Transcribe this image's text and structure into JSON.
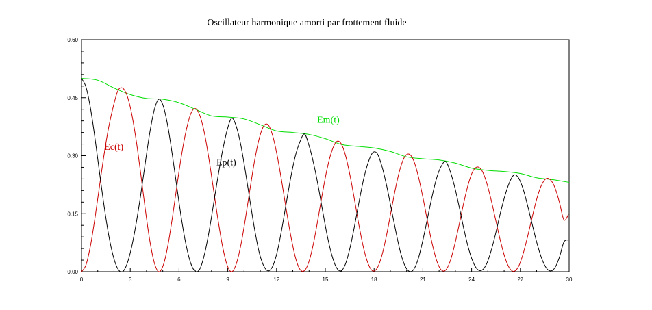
{
  "chart_data": {
    "type": "line",
    "title": "Oscillateur harmonique amorti par frottement fluide",
    "xlabel": "",
    "ylabel": "",
    "xlim": [
      0,
      30
    ],
    "ylim": [
      0,
      0.6
    ],
    "grid": false,
    "x_ticks": [
      "0",
      "3",
      "6",
      "9",
      "12",
      "15",
      "18",
      "21",
      "24",
      "27",
      "30"
    ],
    "y_ticks": [
      "0.00",
      "0.15",
      "0.30",
      "0.45",
      "0.60"
    ],
    "colors": {
      "Em(t)": "#00dd00",
      "Ec(t)": "#cc0000",
      "Ep(t)": "#000000"
    },
    "series": [
      {
        "name": "Em(t)",
        "x": [
          0,
          1,
          2,
          3,
          4,
          5,
          6,
          7,
          8,
          9,
          10,
          11,
          12,
          13,
          14,
          15,
          16,
          17,
          18,
          19,
          20,
          21,
          22,
          23,
          24,
          25,
          26,
          27,
          28,
          29,
          30
        ],
        "values": [
          0.5,
          0.495,
          0.475,
          0.458,
          0.448,
          0.446,
          0.437,
          0.42,
          0.403,
          0.4,
          0.395,
          0.38,
          0.364,
          0.36,
          0.355,
          0.344,
          0.329,
          0.324,
          0.32,
          0.311,
          0.297,
          0.292,
          0.289,
          0.281,
          0.268,
          0.262,
          0.259,
          0.254,
          0.243,
          0.238,
          0.231
        ]
      },
      {
        "name": "Ec(t)",
        "x": [
          0,
          0.28,
          0.56,
          0.84,
          1.12,
          1.4,
          1.68,
          1.96,
          2.24,
          2.52,
          2.8,
          3.08,
          3.36,
          3.64,
          3.92,
          4.2,
          4.48,
          4.76,
          5.04,
          5.32,
          5.6,
          5.88,
          6.16,
          6.44,
          6.72,
          7.0,
          7.28,
          7.56,
          7.84,
          8.12,
          8.4,
          8.68,
          8.96,
          9.24,
          9.52,
          9.8,
          10.08,
          10.36,
          10.64,
          10.92,
          11.2,
          11.48,
          11.76,
          12.04,
          12.32,
          12.6,
          12.88,
          13.16,
          13.44,
          13.72,
          14.0,
          14.28,
          14.56,
          14.84,
          15.12,
          15.4,
          15.68,
          15.96,
          16.24,
          16.52,
          16.8,
          17.08,
          17.36,
          17.64,
          17.92,
          18.2,
          18.48,
          18.76,
          19.04,
          19.32,
          19.6,
          19.88,
          20.16,
          20.44,
          20.72,
          21.0,
          21.28,
          21.56,
          21.84,
          22.12,
          22.4,
          22.68,
          22.96,
          23.24,
          23.52,
          23.8,
          24.08,
          24.36,
          24.64,
          24.92,
          25.2,
          25.48,
          25.76,
          26.04,
          26.32,
          26.6,
          26.88,
          27.16,
          27.44,
          27.72,
          28.0,
          28.28,
          28.56,
          28.84,
          29.12,
          29.4,
          29.68,
          29.96
        ],
        "values": [
          0.0,
          0.018,
          0.069,
          0.142,
          0.225,
          0.306,
          0.375,
          0.428,
          0.468,
          0.475,
          0.456,
          0.41,
          0.341,
          0.255,
          0.163,
          0.081,
          0.023,
          0.0,
          0.018,
          0.069,
          0.142,
          0.225,
          0.303,
          0.365,
          0.408,
          0.422,
          0.404,
          0.359,
          0.292,
          0.213,
          0.134,
          0.065,
          0.017,
          0.0,
          0.02,
          0.068,
          0.136,
          0.212,
          0.285,
          0.342,
          0.376,
          0.38,
          0.352,
          0.3,
          0.233,
          0.16,
          0.092,
          0.037,
          0.006,
          0.003,
          0.027,
          0.075,
          0.139,
          0.207,
          0.268,
          0.312,
          0.336,
          0.332,
          0.301,
          0.249,
          0.185,
          0.118,
          0.06,
          0.02,
          0.002,
          0.01,
          0.042,
          0.093,
          0.155,
          0.216,
          0.266,
          0.297,
          0.304,
          0.287,
          0.247,
          0.193,
          0.132,
          0.075,
          0.03,
          0.005,
          0.004,
          0.027,
          0.07,
          0.123,
          0.179,
          0.227,
          0.26,
          0.271,
          0.261,
          0.231,
          0.186,
          0.134,
          0.082,
          0.038,
          0.01,
          0.001,
          0.013,
          0.045,
          0.09,
          0.14,
          0.187,
          0.222,
          0.24,
          0.238,
          0.218,
          0.18,
          0.134,
          0.148
        ]
      },
      {
        "name": "Ep(t)",
        "x": [
          0,
          0.28,
          0.56,
          0.84,
          1.12,
          1.4,
          1.68,
          1.96,
          2.24,
          2.52,
          2.8,
          3.08,
          3.36,
          3.64,
          3.92,
          4.2,
          4.48,
          4.76,
          5.04,
          5.32,
          5.6,
          5.88,
          6.16,
          6.44,
          6.72,
          7.0,
          7.28,
          7.56,
          7.84,
          8.12,
          8.4,
          8.68,
          8.96,
          9.24,
          9.52,
          9.8,
          10.08,
          10.36,
          10.64,
          10.92,
          11.2,
          11.48,
          11.76,
          12.04,
          12.32,
          12.6,
          12.88,
          13.16,
          13.44,
          13.72,
          14.0,
          14.28,
          14.56,
          14.84,
          15.12,
          15.4,
          15.68,
          15.96,
          16.24,
          16.52,
          16.8,
          17.08,
          17.36,
          17.64,
          17.92,
          18.2,
          18.48,
          18.76,
          19.04,
          19.32,
          19.6,
          19.88,
          20.16,
          20.44,
          20.72,
          21.0,
          21.28,
          21.56,
          21.84,
          22.12,
          22.4,
          22.68,
          22.96,
          23.24,
          23.52,
          23.8,
          24.08,
          24.36,
          24.64,
          24.92,
          25.2,
          25.48,
          25.76,
          26.04,
          26.32,
          26.6,
          26.88,
          27.16,
          27.44,
          27.72,
          28.0,
          28.28,
          28.56,
          28.84,
          29.12,
          29.4,
          29.68,
          29.96
        ],
        "values": [
          0.5,
          0.477,
          0.421,
          0.342,
          0.253,
          0.167,
          0.093,
          0.039,
          0.007,
          0.0,
          0.02,
          0.063,
          0.124,
          0.198,
          0.28,
          0.359,
          0.419,
          0.446,
          0.427,
          0.374,
          0.299,
          0.215,
          0.134,
          0.068,
          0.022,
          0.001,
          0.007,
          0.044,
          0.102,
          0.174,
          0.247,
          0.313,
          0.366,
          0.397,
          0.376,
          0.328,
          0.26,
          0.185,
          0.112,
          0.052,
          0.016,
          0.002,
          0.014,
          0.051,
          0.11,
          0.178,
          0.245,
          0.3,
          0.336,
          0.356,
          0.326,
          0.28,
          0.222,
          0.156,
          0.093,
          0.043,
          0.011,
          0.002,
          0.02,
          0.062,
          0.119,
          0.182,
          0.24,
          0.283,
          0.308,
          0.305,
          0.273,
          0.225,
          0.167,
          0.108,
          0.054,
          0.017,
          0.001,
          0.006,
          0.034,
          0.081,
          0.137,
          0.193,
          0.241,
          0.272,
          0.285,
          0.26,
          0.219,
          0.167,
          0.111,
          0.062,
          0.026,
          0.006,
          0.004,
          0.02,
          0.054,
          0.099,
          0.15,
          0.195,
          0.23,
          0.25,
          0.243,
          0.215,
          0.172,
          0.124,
          0.077,
          0.038,
          0.012,
          0.002,
          0.01,
          0.037,
          0.077,
          0.082
        ]
      }
    ],
    "annotations": [
      {
        "text": "Em(t)",
        "series": "Em(t)",
        "x": 14.5,
        "y": 0.385
      },
      {
        "text": "Ec(t)",
        "series": "Ec(t)",
        "x": 1.4,
        "y": 0.315
      },
      {
        "text": "Ep(t)",
        "series": "Ep(t)",
        "x": 8.3,
        "y": 0.275
      }
    ]
  }
}
